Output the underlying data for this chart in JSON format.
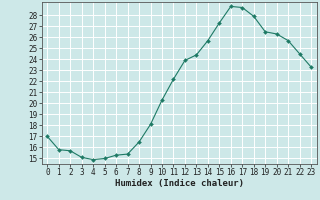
{
  "x": [
    0,
    1,
    2,
    3,
    4,
    5,
    6,
    7,
    8,
    9,
    10,
    11,
    12,
    13,
    14,
    15,
    16,
    17,
    18,
    19,
    20,
    21,
    22,
    23
  ],
  "y": [
    17,
    15.8,
    15.7,
    15.1,
    14.9,
    15.0,
    15.3,
    15.4,
    16.5,
    18.1,
    20.3,
    22.2,
    23.9,
    24.4,
    25.7,
    27.3,
    28.8,
    28.7,
    27.9,
    26.5,
    26.3,
    25.7,
    24.5,
    23.3
  ],
  "xlabel": "Humidex (Indice chaleur)",
  "xlim": [
    -0.5,
    23.5
  ],
  "ylim": [
    14.5,
    29.2
  ],
  "yticks": [
    15,
    16,
    17,
    18,
    19,
    20,
    21,
    22,
    23,
    24,
    25,
    26,
    27,
    28
  ],
  "xticks": [
    0,
    1,
    2,
    3,
    4,
    5,
    6,
    7,
    8,
    9,
    10,
    11,
    12,
    13,
    14,
    15,
    16,
    17,
    18,
    19,
    20,
    21,
    22,
    23
  ],
  "line_color": "#1e7a65",
  "marker_color": "#1e7a65",
  "bg_color": "#cde8e8",
  "grid_color": "#ffffff",
  "tick_fontsize": 5.5,
  "xlabel_fontsize": 6.5
}
